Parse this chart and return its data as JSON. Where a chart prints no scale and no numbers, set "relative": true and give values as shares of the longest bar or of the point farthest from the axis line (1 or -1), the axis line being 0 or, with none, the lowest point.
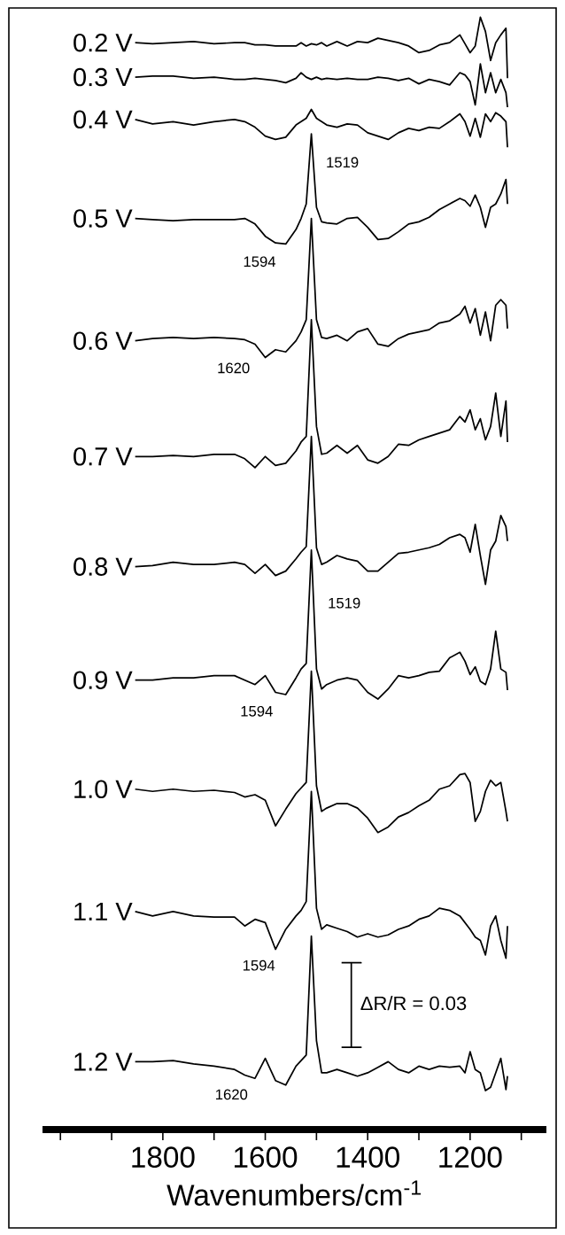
{
  "chart_data": {
    "type": "line",
    "relative": true,
    "xlabel": "Wavenumbers/cm$^{-1}$",
    "xlim": [
      2035,
      1051
    ],
    "tick_labels": "x",
    "xticks": [
      {
        "value": 2000,
        "label": null
      },
      {
        "value": 1900,
        "label": null
      },
      1800,
      {
        "value": 1700,
        "label": null
      },
      1600,
      {
        "value": 1500,
        "label": null
      },
      1400,
      {
        "value": 1300,
        "label": null
      },
      1200,
      {
        "value": 1100,
        "label": null
      }
    ],
    "x": [
      1854,
      1820,
      1780,
      1740,
      1700,
      1660,
      1640,
      1620,
      1600,
      1580,
      1560,
      1540,
      1530,
      1520,
      1510,
      1500,
      1490,
      1480,
      1460,
      1440,
      1420,
      1400,
      1380,
      1360,
      1340,
      1320,
      1300,
      1280,
      1260,
      1240,
      1220,
      1210,
      1200,
      1190,
      1180,
      1170,
      1160,
      1150,
      1140,
      1130,
      1127
    ],
    "series": [
      {
        "name": "0.2 V",
        "color": "#000000",
        "values": [
          0.977,
          0.976,
          0.977,
          0.978,
          0.976,
          0.977,
          0.977,
          0.975,
          0.975,
          0.974,
          0.974,
          0.974,
          0.977,
          0.974,
          0.976,
          0.975,
          0.977,
          0.974,
          0.978,
          0.974,
          0.978,
          0.977,
          0.981,
          0.979,
          0.977,
          0.974,
          0.968,
          0.97,
          0.975,
          0.977,
          0.984,
          0.976,
          0.968,
          0.974,
          1,
          0.987,
          0.961,
          0.977,
          0.984,
          0.99,
          0.945
        ]
      },
      {
        "name": "0.3 V",
        "color": "#000000",
        "values": [
          0.946,
          0.947,
          0.947,
          0.945,
          0.946,
          0.944,
          0.944,
          0.945,
          0.944,
          0.943,
          0.941,
          0.945,
          0.95,
          0.946,
          0.944,
          0.946,
          0.944,
          0.945,
          0.944,
          0.945,
          0.944,
          0.944,
          0.946,
          0.945,
          0.943,
          0.945,
          0.94,
          0.944,
          0.942,
          0.939,
          0.95,
          0.948,
          0.942,
          0.921,
          0.958,
          0.932,
          0.95,
          0.932,
          0.944,
          0.932,
          0.919
        ]
      },
      {
        "name": "0.4 V",
        "color": "#000000",
        "values": [
          0.908,
          0.904,
          0.906,
          0.903,
          0.906,
          0.908,
          0.906,
          0.901,
          0.893,
          0.89,
          0.892,
          0.903,
          0.906,
          0.909,
          0.917,
          0.909,
          0.906,
          0.903,
          0.901,
          0.904,
          0.903,
          0.896,
          0.893,
          0.89,
          0.896,
          0.9,
          0.898,
          0.901,
          0.9,
          0.906,
          0.913,
          0.906,
          0.893,
          0.909,
          0.892,
          0.913,
          0.906,
          0.914,
          0.911,
          0.906,
          0.883
        ]
      },
      {
        "name": "0.5 V",
        "color": "#000000",
        "values": [
          0.819,
          0.818,
          0.817,
          0.818,
          0.818,
          0.818,
          0.819,
          0.814,
          0.803,
          0.797,
          0.796,
          0.809,
          0.819,
          0.832,
          0.895,
          0.829,
          0.816,
          0.815,
          0.814,
          0.819,
          0.82,
          0.811,
          0.8,
          0.801,
          0.807,
          0.814,
          0.816,
          0.82,
          0.827,
          0.832,
          0.837,
          0.835,
          0.83,
          0.84,
          0.829,
          0.811,
          0.829,
          0.832,
          0.841,
          0.854,
          0.832
        ]
      },
      {
        "name": "0.6 V",
        "color": "#000000",
        "values": [
          0.709,
          0.711,
          0.712,
          0.711,
          0.712,
          0.711,
          0.71,
          0.706,
          0.694,
          0.701,
          0.699,
          0.709,
          0.717,
          0.728,
          0.819,
          0.728,
          0.712,
          0.711,
          0.714,
          0.709,
          0.717,
          0.72,
          0.706,
          0.704,
          0.711,
          0.715,
          0.717,
          0.719,
          0.725,
          0.727,
          0.733,
          0.74,
          0.725,
          0.738,
          0.714,
          0.735,
          0.709,
          0.741,
          0.746,
          0.741,
          0.72
        ]
      },
      {
        "name": "0.7 V",
        "color": "#000000",
        "values": [
          0.605,
          0.605,
          0.606,
          0.605,
          0.607,
          0.607,
          0.603,
          0.595,
          0.605,
          0.597,
          0.599,
          0.61,
          0.618,
          0.623,
          0.728,
          0.632,
          0.607,
          0.608,
          0.615,
          0.608,
          0.615,
          0.602,
          0.599,
          0.605,
          0.616,
          0.615,
          0.62,
          0.623,
          0.626,
          0.629,
          0.641,
          0.636,
          0.647,
          0.629,
          0.639,
          0.62,
          0.632,
          0.662,
          0.623,
          0.655,
          0.618
        ]
      },
      {
        "name": "0.8 V",
        "color": "#000000",
        "values": [
          0.506,
          0.507,
          0.51,
          0.508,
          0.508,
          0.51,
          0.508,
          0.5,
          0.508,
          0.498,
          0.502,
          0.513,
          0.519,
          0.524,
          0.623,
          0.523,
          0.508,
          0.51,
          0.516,
          0.513,
          0.511,
          0.502,
          0.502,
          0.51,
          0.518,
          0.519,
          0.521,
          0.523,
          0.526,
          0.532,
          0.535,
          0.532,
          0.519,
          0.544,
          0.516,
          0.49,
          0.521,
          0.529,
          0.552,
          0.542,
          0.529
        ]
      },
      {
        "name": "0.9 V",
        "color": "#000000",
        "values": [
          0.404,
          0.404,
          0.406,
          0.406,
          0.408,
          0.408,
          0.404,
          0.4,
          0.408,
          0.393,
          0.391,
          0.406,
          0.414,
          0.419,
          0.521,
          0.414,
          0.396,
          0.4,
          0.404,
          0.406,
          0.404,
          0.393,
          0.387,
          0.396,
          0.408,
          0.406,
          0.408,
          0.411,
          0.412,
          0.424,
          0.429,
          0.421,
          0.409,
          0.416,
          0.403,
          0.4,
          0.414,
          0.448,
          0.414,
          0.411,
          0.395
        ]
      },
      {
        "name": "1.0 V",
        "color": "#000000",
        "values": [
          0.306,
          0.304,
          0.306,
          0.304,
          0.305,
          0.303,
          0.299,
          0.301,
          0.296,
          0.273,
          0.288,
          0.302,
          0.307,
          0.312,
          0.412,
          0.309,
          0.286,
          0.289,
          0.293,
          0.293,
          0.289,
          0.28,
          0.267,
          0.272,
          0.281,
          0.285,
          0.291,
          0.296,
          0.306,
          0.309,
          0.319,
          0.32,
          0.312,
          0.277,
          0.286,
          0.304,
          0.314,
          0.309,
          0.312,
          0.286,
          0.277
        ]
      },
      {
        "name": "1.1 V",
        "color": "#000000",
        "values": [
          0.196,
          0.192,
          0.196,
          0.192,
          0.191,
          0.191,
          0.183,
          0.189,
          0.186,
          0.162,
          0.18,
          0.192,
          0.197,
          0.205,
          0.304,
          0.199,
          0.18,
          0.184,
          0.181,
          0.178,
          0.173,
          0.176,
          0.173,
          0.175,
          0.18,
          0.183,
          0.189,
          0.192,
          0.199,
          0.197,
          0.192,
          0.186,
          0.18,
          0.173,
          0.17,
          0.157,
          0.183,
          0.192,
          0.17,
          0.154,
          0.183
        ]
      },
      {
        "name": "1.2 V",
        "color": "#000000",
        "values": [
          0.061,
          0.061,
          0.062,
          0.059,
          0.057,
          0.054,
          0.049,
          0.046,
          0.064,
          0.044,
          0.04,
          0.057,
          0.062,
          0.067,
          0.174,
          0.08,
          0.051,
          0.051,
          0.054,
          0.051,
          0.048,
          0.051,
          0.056,
          0.061,
          0.054,
          0.051,
          0.057,
          0.054,
          0.057,
          0.056,
          0.057,
          0.051,
          0.07,
          0.054,
          0.051,
          0.035,
          0.038,
          0.051,
          0.064,
          0.036,
          0.048
        ]
      },
      {
        "color": "#000000",
        "x": [
          1451,
          1413,
          1432,
          1432,
          1413,
          1451
        ],
        "values": [
          0.15,
          0.15,
          0.15,
          0.074,
          0.074,
          0.074
        ]
      }
    ],
    "annotations": [
      "1519",
      "1594",
      "1620",
      "1519",
      "1594",
      "1594",
      "1620",
      "ΔR/R = 0.03"
    ]
  }
}
